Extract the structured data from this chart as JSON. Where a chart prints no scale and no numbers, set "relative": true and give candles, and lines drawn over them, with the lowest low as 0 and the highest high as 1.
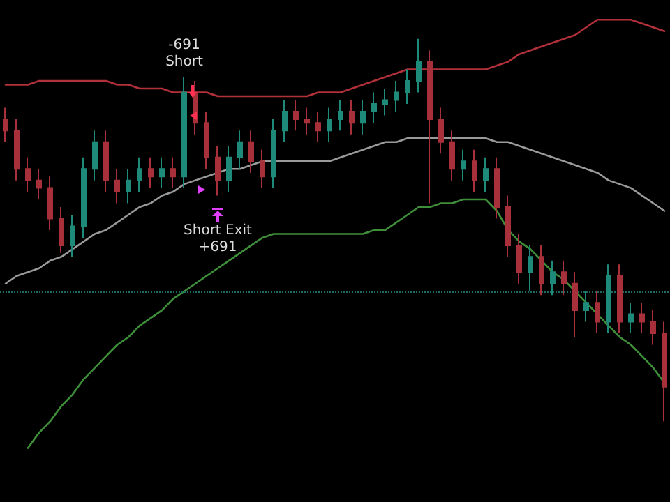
{
  "chart_data": {
    "type": "candlestick",
    "relative": true,
    "categories": [
      null,
      null,
      null,
      null,
      null,
      null,
      null,
      null,
      null,
      null,
      null,
      null,
      null,
      null,
      null,
      null,
      null,
      null,
      null,
      null,
      null,
      null,
      null,
      null,
      null,
      null,
      null,
      null,
      null,
      null,
      null,
      null,
      null,
      null,
      null,
      null,
      null,
      null,
      null,
      null,
      null,
      null,
      null,
      null,
      null,
      null,
      null,
      null,
      null,
      null,
      null,
      null,
      null,
      null,
      null,
      null,
      null,
      null,
      null,
      null
    ],
    "ohlc": [
      [
        0.79,
        0.82,
        0.73,
        0.76
      ],
      [
        0.76,
        0.79,
        0.63,
        0.66
      ],
      [
        0.66,
        0.69,
        0.6,
        0.63
      ],
      [
        0.63,
        0.66,
        0.58,
        0.61
      ],
      [
        0.61,
        0.64,
        0.5,
        0.53
      ],
      [
        0.53,
        0.56,
        0.44,
        0.46
      ],
      [
        0.46,
        0.54,
        0.43,
        0.51
      ],
      [
        0.51,
        0.69,
        0.48,
        0.66
      ],
      [
        0.66,
        0.76,
        0.63,
        0.73
      ],
      [
        0.73,
        0.76,
        0.6,
        0.63
      ],
      [
        0.63,
        0.66,
        0.57,
        0.6
      ],
      [
        0.6,
        0.66,
        0.57,
        0.63
      ],
      [
        0.63,
        0.69,
        0.6,
        0.66
      ],
      [
        0.66,
        0.69,
        0.61,
        0.64
      ],
      [
        0.64,
        0.69,
        0.61,
        0.66
      ],
      [
        0.66,
        0.69,
        0.61,
        0.64
      ],
      [
        0.64,
        0.9,
        0.61,
        0.86
      ],
      [
        0.86,
        0.89,
        0.75,
        0.78
      ],
      [
        0.78,
        0.81,
        0.66,
        0.69
      ],
      [
        0.69,
        0.72,
        0.59,
        0.63
      ],
      [
        0.63,
        0.72,
        0.6,
        0.69
      ],
      [
        0.69,
        0.76,
        0.66,
        0.73
      ],
      [
        0.73,
        0.76,
        0.65,
        0.68
      ],
      [
        0.68,
        0.71,
        0.61,
        0.64
      ],
      [
        0.64,
        0.79,
        0.61,
        0.76
      ],
      [
        0.76,
        0.84,
        0.73,
        0.81
      ],
      [
        0.81,
        0.84,
        0.76,
        0.79
      ],
      [
        0.79,
        0.82,
        0.75,
        0.78
      ],
      [
        0.78,
        0.81,
        0.73,
        0.76
      ],
      [
        0.76,
        0.82,
        0.73,
        0.79
      ],
      [
        0.79,
        0.84,
        0.76,
        0.81
      ],
      [
        0.81,
        0.84,
        0.75,
        0.78
      ],
      [
        0.78,
        0.84,
        0.75,
        0.81
      ],
      [
        0.81,
        0.86,
        0.78,
        0.83
      ],
      [
        0.83,
        0.87,
        0.8,
        0.84
      ],
      [
        0.84,
        0.89,
        0.81,
        0.86
      ],
      [
        0.86,
        0.92,
        0.83,
        0.89
      ],
      [
        0.89,
        1,
        0.86,
        0.94
      ],
      [
        0.94,
        0.97,
        0.57,
        0.79
      ],
      [
        0.79,
        0.82,
        0.7,
        0.73
      ],
      [
        0.73,
        0.76,
        0.63,
        0.66
      ],
      [
        0.66,
        0.71,
        0.63,
        0.68
      ],
      [
        0.68,
        0.71,
        0.6,
        0.63
      ],
      [
        0.63,
        0.69,
        0.6,
        0.66
      ],
      [
        0.66,
        0.69,
        0.53,
        0.56
      ],
      [
        0.56,
        0.59,
        0.43,
        0.46
      ],
      [
        0.46,
        0.49,
        0.36,
        0.39
      ],
      [
        0.39,
        0.46,
        0.34,
        0.43
      ],
      [
        0.43,
        0.46,
        0.33,
        0.36
      ],
      [
        0.36,
        0.42,
        0.33,
        0.39
      ],
      [
        0.39,
        0.42,
        0.33,
        0.36
      ],
      [
        0.36,
        0.39,
        0.22,
        0.29
      ],
      [
        0.29,
        0.34,
        0.26,
        0.31
      ],
      [
        0.31,
        0.34,
        0.23,
        0.26
      ],
      [
        0.26,
        0.41,
        0.23,
        0.38
      ],
      [
        0.38,
        0.41,
        0.23,
        0.26
      ],
      [
        0.26,
        0.31,
        0.23,
        0.28
      ],
      [
        0.28,
        0.31,
        0.23,
        0.26
      ],
      [
        0.26,
        0.29,
        0.2,
        0.23
      ],
      [
        0.23,
        0.26,
        0,
        0.09
      ]
    ],
    "colors": [
      "#a8303a",
      "#a8303a",
      "#a8303a",
      "#a8303a",
      "#a8303a",
      "#a8303a",
      "#1e8a7a",
      "#1e8a7a",
      "#1e8a7a",
      "#a8303a",
      "#a8303a",
      "#1e8a7a",
      "#1e8a7a",
      "#a8303a",
      "#1e8a7a",
      "#a8303a",
      "#1e8a7a",
      "#a8303a",
      "#a8303a",
      "#a8303a",
      "#1e8a7a",
      "#1e8a7a",
      "#a8303a",
      "#a8303a",
      "#1e8a7a",
      "#1e8a7a",
      "#a8303a",
      "#a8303a",
      "#a8303a",
      "#1e8a7a",
      "#1e8a7a",
      "#a8303a",
      "#1e8a7a",
      "#1e8a7a",
      "#1e8a7a",
      "#1e8a7a",
      "#1e8a7a",
      "#1e8a7a",
      "#a8303a",
      "#a8303a",
      "#a8303a",
      "#1e8a7a",
      "#a8303a",
      "#1e8a7a",
      "#a8303a",
      "#a8303a",
      "#a8303a",
      "#1e8a7a",
      "#a8303a",
      "#1e8a7a",
      "#a8303a",
      "#a8303a",
      "#1e8a7a",
      "#a8303a",
      "#1e8a7a",
      "#a8303a",
      "#1e8a7a",
      "#a8303a",
      "#a8303a",
      "#a8303a"
    ],
    "series": [
      {
        "type": "line",
        "color": "#b2303a",
        "values": [
          0.88,
          0.88,
          0.88,
          0.89,
          0.89,
          0.89,
          0.89,
          0.89,
          0.89,
          0.89,
          0.88,
          0.88,
          0.87,
          0.87,
          0.87,
          0.86,
          0.86,
          0.86,
          0.86,
          0.85,
          0.85,
          0.85,
          0.85,
          0.85,
          0.85,
          0.85,
          0.85,
          0.85,
          0.86,
          0.86,
          0.86,
          0.87,
          0.88,
          0.89,
          0.9,
          0.91,
          0.92,
          0.92,
          0.92,
          0.92,
          0.92,
          0.92,
          0.92,
          0.92,
          0.93,
          0.94,
          0.96,
          0.97,
          0.98,
          0.99,
          1.0,
          1.01,
          1.03,
          1.05,
          1.05,
          1.05,
          1.05,
          1.04,
          1.03,
          1.02
        ]
      },
      {
        "type": "line",
        "color": "#9a9a9a",
        "values": [
          0.36,
          0.38,
          0.39,
          0.4,
          0.42,
          0.43,
          0.45,
          0.47,
          0.49,
          0.5,
          0.52,
          0.54,
          0.56,
          0.57,
          0.59,
          0.6,
          0.62,
          0.63,
          0.64,
          0.65,
          0.66,
          0.66,
          0.67,
          0.68,
          0.68,
          0.68,
          0.68,
          0.68,
          0.68,
          0.68,
          0.69,
          0.7,
          0.71,
          0.72,
          0.73,
          0.73,
          0.74,
          0.74,
          0.74,
          0.74,
          0.74,
          0.74,
          0.74,
          0.74,
          0.73,
          0.73,
          0.72,
          0.71,
          0.7,
          0.69,
          0.68,
          0.67,
          0.66,
          0.65,
          0.63,
          0.62,
          0.61,
          0.59,
          0.57,
          0.55
        ]
      },
      {
        "type": "line",
        "color": "#3f8f3a",
        "values": [
          null,
          null,
          -0.07,
          -0.03,
          0.0,
          0.04,
          0.07,
          0.11,
          0.14,
          0.17,
          0.2,
          0.22,
          0.25,
          0.27,
          0.29,
          0.32,
          0.34,
          0.36,
          0.38,
          0.4,
          0.42,
          0.44,
          0.46,
          0.48,
          0.49,
          0.49,
          0.49,
          0.49,
          0.49,
          0.49,
          0.49,
          0.49,
          0.49,
          0.5,
          0.5,
          0.52,
          0.54,
          0.56,
          0.56,
          0.57,
          0.57,
          0.58,
          0.58,
          0.58,
          0.55,
          0.5,
          0.47,
          0.45,
          0.42,
          0.39,
          0.37,
          0.34,
          0.31,
          0.28,
          0.25,
          0.22,
          0.2,
          0.17,
          0.14,
          0.1
        ]
      }
    ],
    "line_style": "solid",
    "ref_lines": [
      {
        "axis": "y",
        "value": 0.34,
        "color": "#1f6b63",
        "line_style": "dotted"
      }
    ],
    "annotations": [
      "-691\nShort",
      "Short Exit\n+691"
    ]
  }
}
